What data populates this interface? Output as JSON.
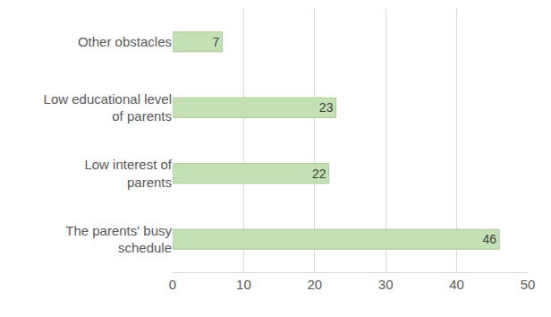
{
  "chart_data": {
    "type": "bar",
    "orientation": "horizontal",
    "categories": [
      "The parents' busy schedule",
      "Low interest of parents",
      "Low educational level of parents",
      "Other obstacles"
    ],
    "values": [
      46,
      22,
      23,
      7
    ],
    "color": "#c5e0b4",
    "xlim": [
      0,
      50
    ],
    "xticks": [
      0,
      10,
      20,
      30,
      40,
      50
    ],
    "grid": true,
    "data_labels": true
  }
}
